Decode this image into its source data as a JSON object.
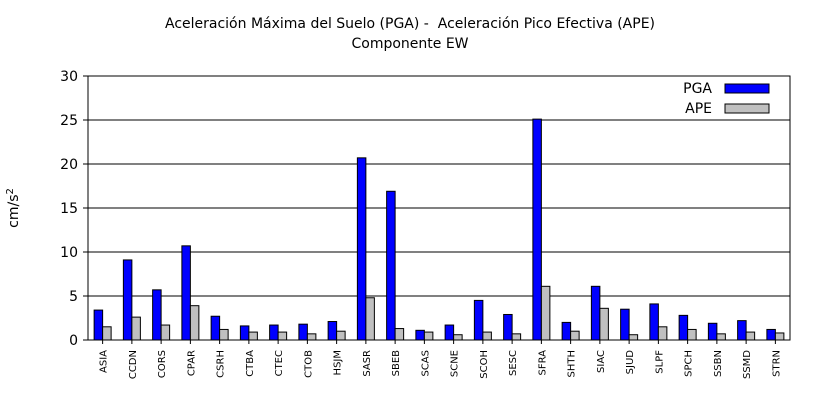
{
  "chart_data": {
    "type": "bar",
    "title_line1": "Aceleración Máxima del Suelo (PGA) -  Aceleración Pico Efectiva (APE)",
    "title_line2": "Componente EW",
    "xlabel": "",
    "ylabel": "cm/s",
    "ylabel_exponent": "2",
    "ylim": [
      0,
      30
    ],
    "yticks": [
      0,
      5,
      10,
      15,
      20,
      25,
      30
    ],
    "grid": true,
    "legend_position": "top-right",
    "categories": [
      "ASIA",
      "CCDN",
      "CORS",
      "CPAR",
      "CSRH",
      "CTBA",
      "CTEC",
      "CTOB",
      "HSJM",
      "SASR",
      "SBEB",
      "SCAS",
      "SCNE",
      "SCOH",
      "SESC",
      "SFRA",
      "SHTH",
      "SIAC",
      "SJUD",
      "SLPF",
      "SPCH",
      "SSBN",
      "SSMD",
      "STRN"
    ],
    "series": [
      {
        "name": "PGA",
        "color": "#0000ff",
        "values": [
          3.4,
          9.1,
          5.7,
          10.7,
          2.7,
          1.6,
          1.7,
          1.8,
          2.1,
          20.7,
          16.9,
          1.1,
          1.7,
          4.5,
          2.9,
          25.1,
          2.0,
          6.1,
          3.5,
          4.1,
          2.8,
          1.9,
          2.2,
          1.2
        ]
      },
      {
        "name": "APE",
        "color": "#c0c0c0",
        "values": [
          1.5,
          2.6,
          1.7,
          3.9,
          1.2,
          0.9,
          0.9,
          0.7,
          1.0,
          4.8,
          1.3,
          0.9,
          0.6,
          0.9,
          0.7,
          6.1,
          1.0,
          3.6,
          0.6,
          1.5,
          1.2,
          0.7,
          0.9,
          0.8
        ]
      }
    ]
  }
}
